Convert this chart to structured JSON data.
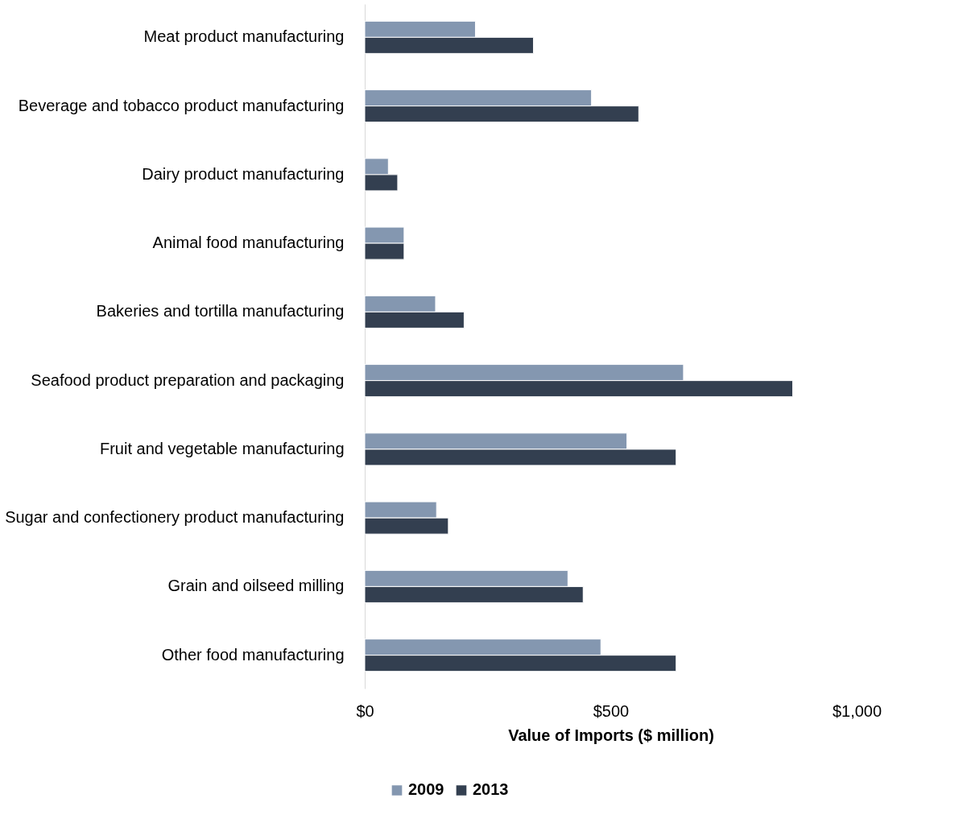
{
  "chart_data": {
    "type": "bar",
    "orientation": "horizontal",
    "xlabel": "Value of Imports ($ million)",
    "categories": [
      "Meat product manufacturing",
      "Beverage and tobacco product manufacturing",
      "Dairy product manufacturing",
      "Animal food manufacturing",
      "Bakeries and tortilla manufacturing",
      "Seafood product preparation and packaging",
      "Fruit and vegetable manufacturing",
      "Sugar and confectionery product manufacturing",
      "Grain and oilseed milling",
      "Other food manufacturing"
    ],
    "series": [
      {
        "name": "2009",
        "color": "#8497b0",
        "values": [
          225,
          461,
          48,
          80,
          144,
          648,
          533,
          146,
          413,
          480
        ]
      },
      {
        "name": "2013",
        "color": "#333f50",
        "values": [
          343,
          557,
          67,
          80,
          202,
          870,
          633,
          170,
          444,
          633
        ]
      }
    ],
    "xlim": [
      0,
      1000
    ],
    "xticks": [
      {
        "value": 0,
        "label": "$0"
      },
      {
        "value": 500,
        "label": "$500"
      },
      {
        "value": 1000,
        "label": "$1,000"
      }
    ],
    "grid": false,
    "legend": "bottom"
  }
}
